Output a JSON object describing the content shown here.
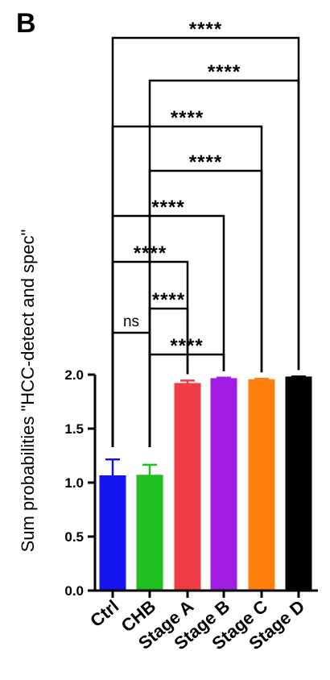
{
  "panel_label": "B",
  "chart_data": {
    "type": "bar",
    "ylabel": "Sum probabilities \"HCC-detect and spec\"",
    "xlabel": "",
    "ylim": [
      0,
      2.0
    ],
    "yticks": [
      0.0,
      0.5,
      1.0,
      1.5,
      2.0
    ],
    "ytick_labels": [
      "0.0",
      "0.5",
      "1.0",
      "1.5",
      "2.0"
    ],
    "categories": [
      "Ctrl",
      "CHB",
      "Stage A",
      "Stage B",
      "Stage C",
      "Stage D"
    ],
    "values": [
      1.06,
      1.065,
      1.915,
      1.96,
      1.95,
      1.975
    ],
    "errors": [
      0.155,
      0.1,
      0.03,
      0.012,
      0.012,
      0.008
    ],
    "colors": [
      "#1414f0",
      "#1fbf1f",
      "#f03c46",
      "#a01ee0",
      "#ff7f0e",
      "#000000"
    ],
    "significance": [
      {
        "from": 0,
        "to": 1,
        "label": "ns"
      },
      {
        "from": 1,
        "to": 3,
        "label": "****"
      },
      {
        "from": 1,
        "to": 2,
        "label": "****"
      },
      {
        "from": 0,
        "to": 2,
        "label": "****"
      },
      {
        "from": 0,
        "to": 3,
        "label": "****"
      },
      {
        "from": 1,
        "to": 4,
        "label": "****"
      },
      {
        "from": 0,
        "to": 4,
        "label": "****"
      },
      {
        "from": 1,
        "to": 5,
        "label": "****"
      },
      {
        "from": 0,
        "to": 5,
        "label": "****"
      }
    ]
  }
}
